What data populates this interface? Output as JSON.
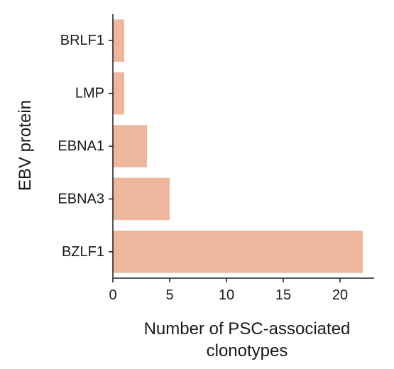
{
  "chart_data": {
    "type": "bar",
    "orientation": "horizontal",
    "categories": [
      "BRLF1",
      "LMP",
      "EBNA1",
      "EBNA3",
      "BZLF1"
    ],
    "values": [
      1,
      1,
      3,
      5,
      22
    ],
    "xlabel": [
      "Number of PSC-associated",
      "clonotypes"
    ],
    "ylabel": "EBV protein",
    "xlim": [
      0,
      23
    ],
    "xticks": [
      0,
      5,
      10,
      15,
      20
    ],
    "grid": false,
    "bar_color": "#EEB69C",
    "axis_color": "#1a1a1a"
  }
}
